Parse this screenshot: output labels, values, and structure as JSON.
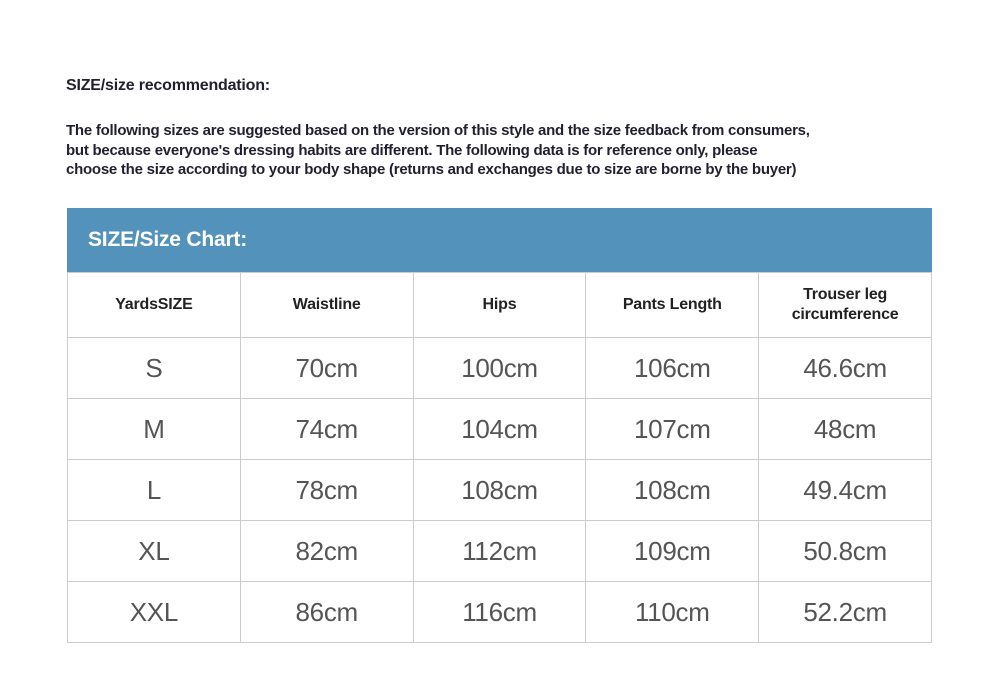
{
  "colors": {
    "accent_banner": "#5392ba",
    "banner_text": "#ffffff",
    "body_text": "#231f30",
    "table_header_text": "#222222",
    "table_cell_text": "#555555",
    "table_border": "#cccccc",
    "background": "#ffffff"
  },
  "recommendation": {
    "heading": "SIZE/size recommendation:",
    "paragraph_lines": [
      "The following sizes are suggested based on the version of this style and the size feedback from consumers,",
      "but because everyone's dressing habits are different. The following data is for reference only, please",
      "choose the size according to your body shape (returns and exchanges due to size are borne by the buyer)"
    ]
  },
  "size_chart": {
    "title": "SIZE/Size Chart:",
    "columns": [
      "YardsSIZE",
      "Waistline",
      "Hips",
      "Pants Length",
      "Trouser leg circumference"
    ],
    "rows": [
      [
        "S",
        "70cm",
        "100cm",
        "106cm",
        "46.6cm"
      ],
      [
        "M",
        "74cm",
        "104cm",
        "107cm",
        "48cm"
      ],
      [
        "L",
        "78cm",
        "108cm",
        "108cm",
        "49.4cm"
      ],
      [
        "XL",
        "82cm",
        "112cm",
        "109cm",
        "50.8cm"
      ],
      [
        "XXL",
        "86cm",
        "116cm",
        "110cm",
        "52.2cm"
      ]
    ]
  }
}
